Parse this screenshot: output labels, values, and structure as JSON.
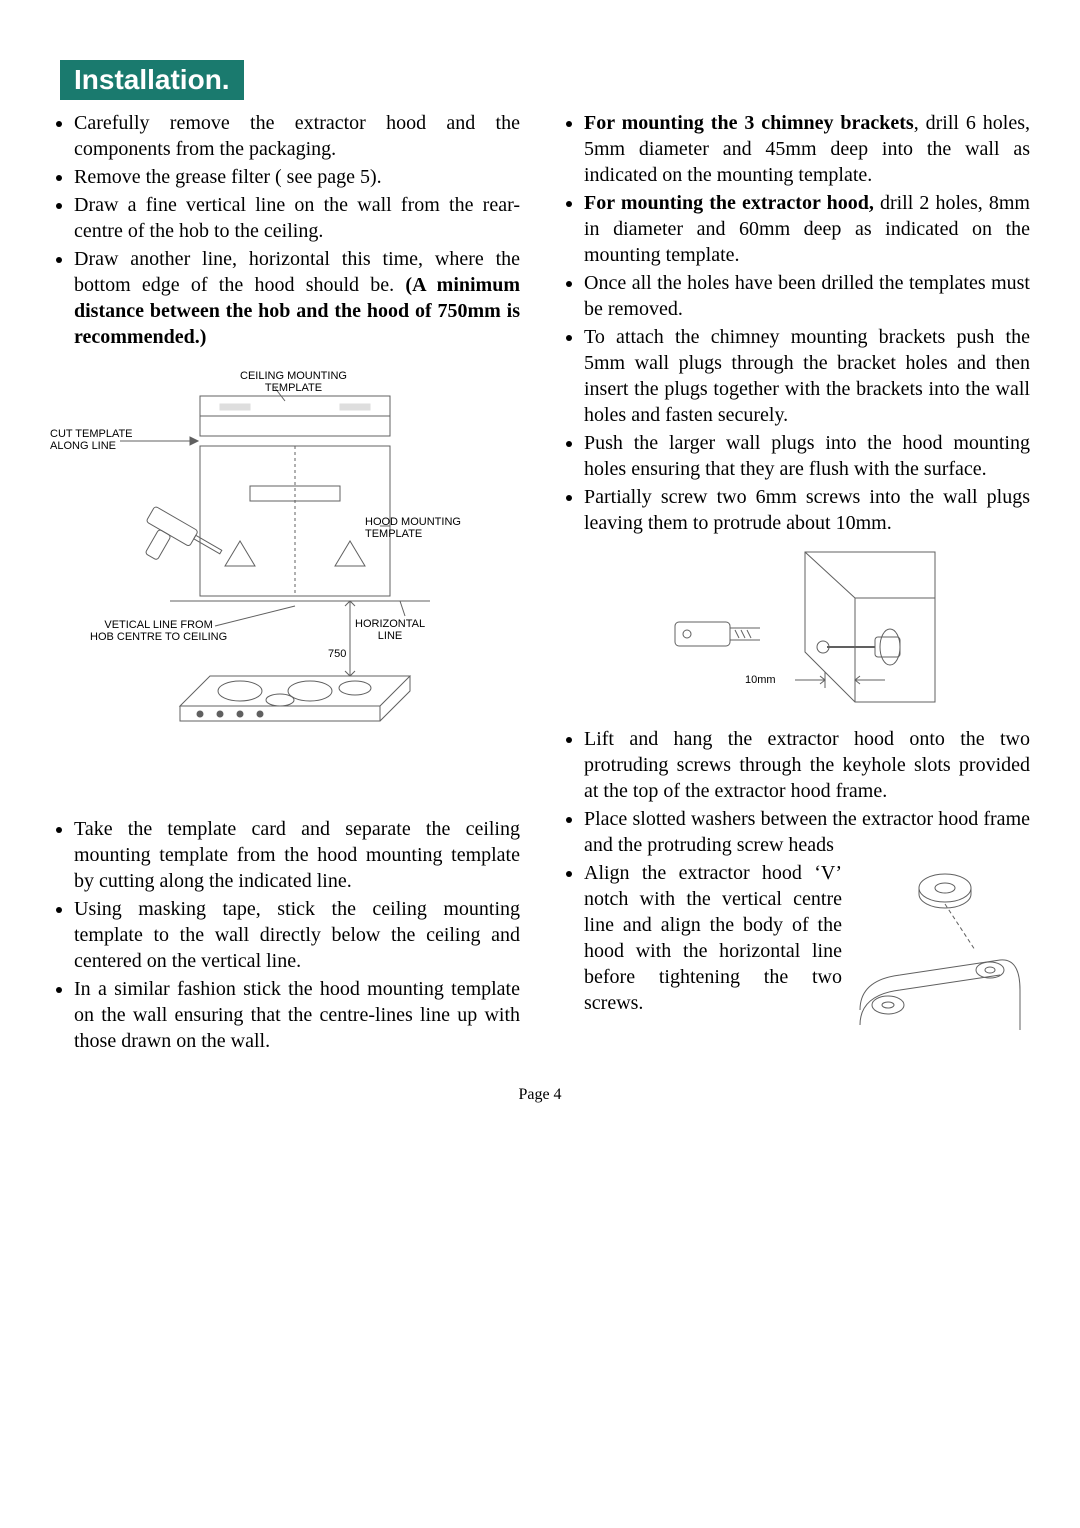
{
  "header": {
    "title": "Installation."
  },
  "leftList1": [
    {
      "html": "Carefully remove the extractor hood and the components from the packaging."
    },
    {
      "html": "Remove the grease filter ( see page 5)."
    },
    {
      "html": "Draw a fine vertical line on the wall from the rear-centre of the hob to the ceiling."
    },
    {
      "html": "Draw another line, horizontal this time, where the bottom edge of the hood should be. <span class=\"bold\">(A minimum distance between the hob and the hood of 750mm is recommended.)</span>"
    }
  ],
  "leftList2": [
    {
      "html": "Take the template card and separate the ceiling mounting template from the hood mounting template by cutting along the indicated line."
    },
    {
      "html": "Using masking tape, stick the ceiling mounting template to the wall directly below the ceiling and centered on the vertical  line."
    },
    {
      "html": "In a similar fashion stick the hood mounting template on the wall ensuring that the centre-lines line up with those drawn on the wall."
    }
  ],
  "rightList1": [
    {
      "html": "<span class=\"bold\">For mounting the 3 chimney brackets</span>, drill 6 holes, 5mm diameter and 45mm deep into the wall as indicated on the mounting template."
    },
    {
      "html": "<span class=\"bold\">For mounting the extractor hood,</span> drill 2 holes, 8mm in diameter and 60mm deep as indicated on the mounting template."
    },
    {
      "html": "Once all the holes have been drilled the templates must be removed."
    },
    {
      "html": "To attach the chimney mounting brackets push the 5mm wall plugs through the  bracket holes and then insert the plugs together with the  brackets into the wall holes and fasten securely."
    },
    {
      "html": "Push the larger wall plugs into the hood mounting holes ensuring that they are flush with the surface."
    },
    {
      "html": "Partially screw two 6mm screws into the wall plugs leaving them to protrude about 10mm."
    }
  ],
  "rightList2": [
    {
      "html": "Lift and hang the extractor hood onto the two protruding screws through the keyhole slots provided at the top of the extractor hood frame."
    },
    {
      "html": "Place slotted washers between the extractor hood frame and the protruding screw heads"
    },
    {
      "html": "Align the extractor hood ‘V’ notch with the vertical centre line and align the body of the hood with the horizontal line before tightening the two screws."
    }
  ],
  "diagram1Labels": {
    "ceilingTemplate": "CEILING MOUNTING\nTEMPLATE",
    "cutTemplate": "CUT TEMPLATE\nALONG LINE",
    "hoodTemplate": "HOOD MOUNTING\nTEMPLATE",
    "verticalLine": "VETICAL LINE FROM\nHOB CENTRE TO CEILING",
    "horizontalLine": "HORIZONTAL\nLINE",
    "dim750": "750"
  },
  "diagram2Labels": {
    "dim10mm": "10mm"
  },
  "footer": {
    "pageLabel": "Page 4"
  },
  "colors": {
    "headerBg": "#1a7a6e",
    "stroke": "#606060",
    "strokeLight": "#888888"
  }
}
